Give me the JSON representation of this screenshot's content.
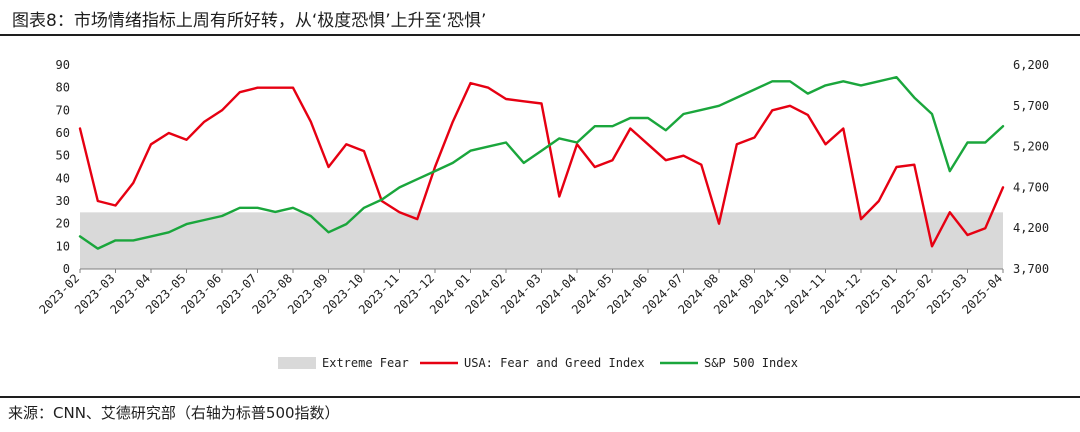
{
  "header": {
    "title": "图表8：市场情绪指标上周有所好转，从‘极度恐惧’上升至‘恐惧’"
  },
  "footer": {
    "source": "来源：CNN、艾德研究部（右轴为标普500指数）"
  },
  "colors": {
    "extreme_fear": "#d9d9d9",
    "fear_greed": "#e60012",
    "sp500": "#1aa63c",
    "axis": "#7f7f7f"
  },
  "chart_data": {
    "type": "line",
    "title": "",
    "xlabel": "",
    "ylabel": "",
    "x_ticks": [
      "2023-02",
      "2023-03",
      "2023-04",
      "2023-05",
      "2023-06",
      "2023-07",
      "2023-08",
      "2023-09",
      "2023-10",
      "2023-11",
      "2023-12",
      "2024-01",
      "2024-02",
      "2024-03",
      "2024-04",
      "2024-05",
      "2024-06",
      "2024-07",
      "2024-08",
      "2024-09",
      "2024-10",
      "2024-11",
      "2024-12",
      "2025-01",
      "2025-02",
      "2025-03",
      "2025-04"
    ],
    "y_left": {
      "lim": [
        0,
        90
      ],
      "ticks": [
        0,
        10,
        20,
        30,
        40,
        50,
        60,
        70,
        80,
        90
      ]
    },
    "y_right": {
      "lim": [
        3700,
        6200
      ],
      "ticks": [
        3700,
        4200,
        4700,
        5200,
        5700,
        6200
      ],
      "tick_labels": [
        "3,700",
        "4,200",
        "4,700",
        "5,200",
        "5,700",
        "6,200"
      ]
    },
    "legend_position": "bottom",
    "grid": false,
    "x": [
      0,
      0.5,
      1,
      1.5,
      2,
      2.5,
      3,
      3.5,
      4,
      4.5,
      5,
      5.5,
      6,
      6.5,
      7,
      7.5,
      8,
      8.5,
      9,
      9.5,
      10,
      10.5,
      11,
      11.5,
      12,
      12.5,
      13,
      13.5,
      14,
      14.5,
      15,
      15.5,
      16,
      16.5,
      17,
      17.5,
      18,
      18.5,
      19,
      19.5,
      20,
      20.5,
      21,
      21.5,
      22,
      22.5,
      23,
      23.5,
      24,
      24.5,
      25,
      25.5,
      26
    ],
    "series": [
      {
        "name": "Extreme Fear",
        "kind": "band",
        "range": [
          0,
          25
        ]
      },
      {
        "name": "USA: Fear and Greed Index",
        "axis": "left",
        "values": [
          62,
          30,
          28,
          38,
          55,
          60,
          57,
          65,
          70,
          78,
          80,
          80,
          80,
          65,
          45,
          55,
          52,
          30,
          25,
          22,
          45,
          65,
          82,
          80,
          75,
          74,
          73,
          32,
          55,
          45,
          48,
          62,
          55,
          48,
          50,
          46,
          20,
          55,
          58,
          70,
          72,
          68,
          55,
          62,
          22,
          30,
          45,
          46,
          10,
          25,
          15,
          18,
          36
        ]
      },
      {
        "name": "S&P 500 Index",
        "axis": "right",
        "values": [
          4100,
          3950,
          4050,
          4050,
          4100,
          4150,
          4250,
          4300,
          4350,
          4450,
          4450,
          4400,
          4450,
          4350,
          4150,
          4250,
          4450,
          4550,
          4700,
          4800,
          4900,
          5000,
          5150,
          5200,
          5250,
          5000,
          5150,
          5300,
          5250,
          5450,
          5450,
          5550,
          5550,
          5400,
          5600,
          5650,
          5700,
          5800,
          5900,
          6000,
          6000,
          5850,
          5950,
          6000,
          5950,
          6000,
          6050,
          5800,
          5600,
          4900,
          5250,
          5250,
          5450
        ]
      }
    ]
  }
}
